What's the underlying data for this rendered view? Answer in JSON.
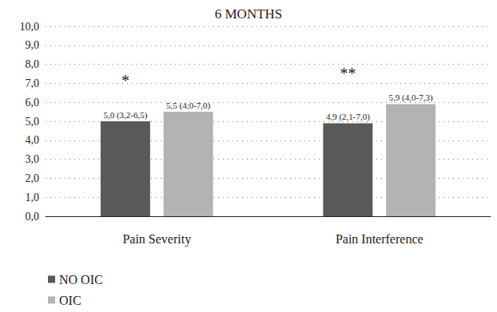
{
  "chart_data": {
    "type": "bar",
    "title": "6 MONTHS",
    "categories": [
      "Pain Severity",
      "Pain Interference"
    ],
    "series": [
      {
        "name": "NO OIC",
        "color": "#595959",
        "values": [
          5.0,
          4.9
        ],
        "value_labels": [
          "5,0 (3,2-6,5)",
          "4,9 (2,1-7,0)"
        ]
      },
      {
        "name": "OIC",
        "color": "#b3b3b3",
        "values": [
          5.5,
          5.9
        ],
        "value_labels": [
          "5,5 (4;0-7,0)",
          "5,9 (4,0-7,3)"
        ]
      }
    ],
    "ylim": [
      0,
      10
    ],
    "yticks": [
      {
        "value": 0,
        "label": "0,0"
      },
      {
        "value": 1,
        "label": "1,0"
      },
      {
        "value": 2,
        "label": "2,0"
      },
      {
        "value": 3,
        "label": "3,0"
      },
      {
        "value": 4,
        "label": "4,0"
      },
      {
        "value": 5,
        "label": "5,0"
      },
      {
        "value": 6,
        "label": "6,0"
      },
      {
        "value": 7,
        "label": "7,0"
      },
      {
        "value": 8,
        "label": "8,0"
      },
      {
        "value": 9,
        "label": "9,0"
      },
      {
        "value": 10,
        "label": "10,0"
      }
    ],
    "grid": true,
    "legend": "bottom-left",
    "data_labels": true,
    "annotations": [
      {
        "text": "*",
        "category": "Pain Severity"
      },
      {
        "text": "**",
        "category": "Pain Interference"
      }
    ]
  }
}
